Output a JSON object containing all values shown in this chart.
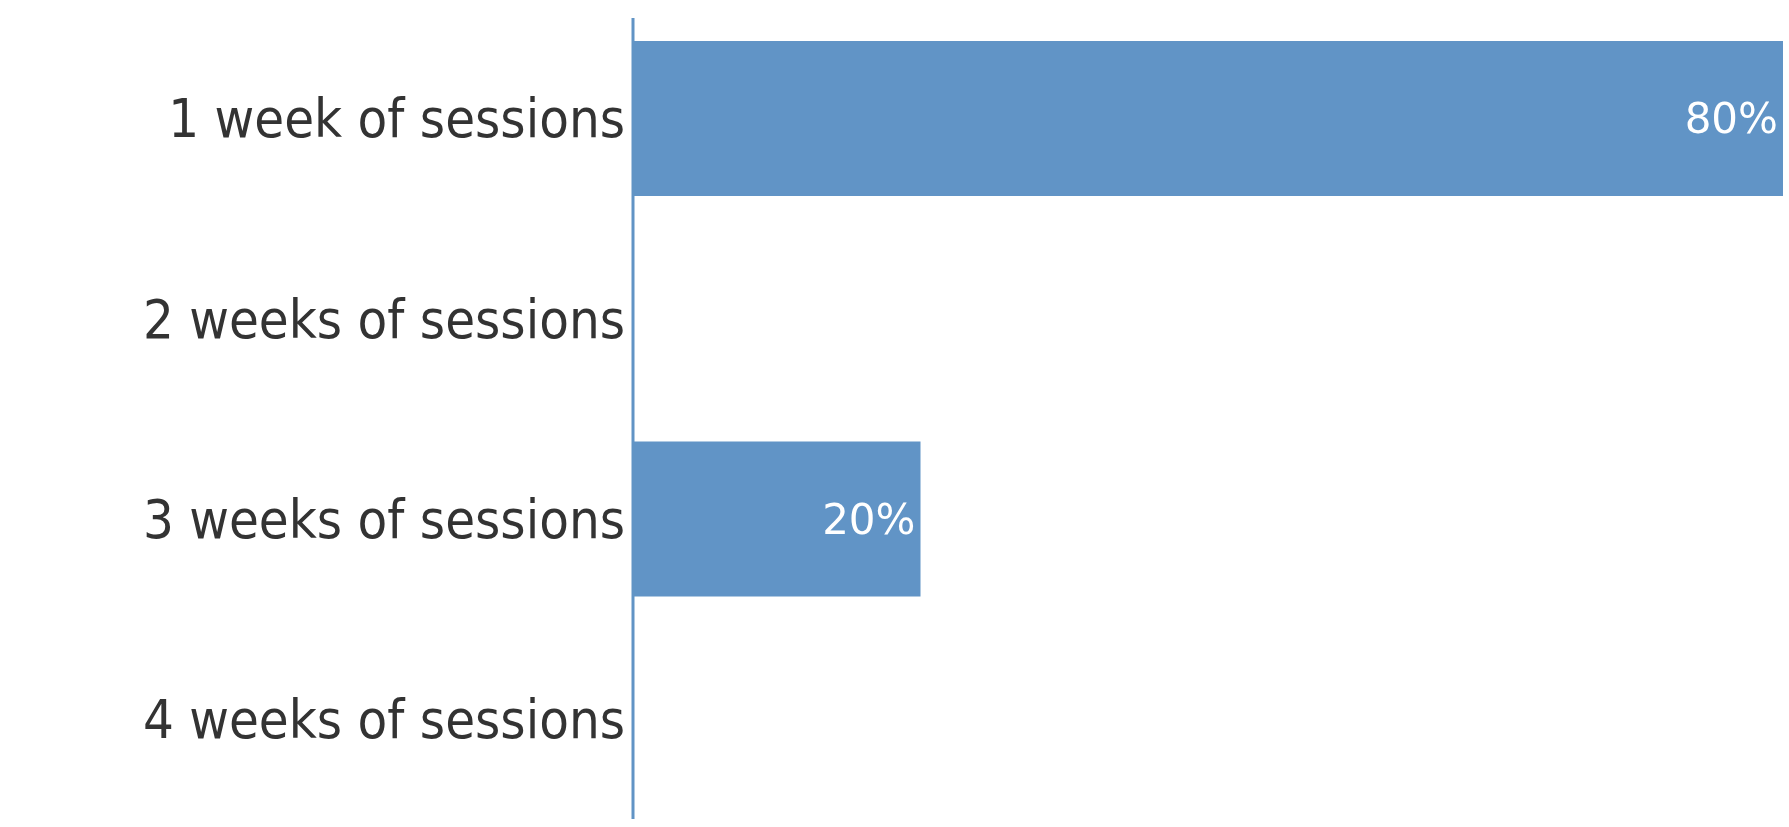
{
  "chart_data": {
    "type": "bar",
    "orientation": "horizontal",
    "categories": [
      "1 week of sessions",
      "2 weeks of sessions",
      "3 weeks of sessions",
      "4 weeks of sessions"
    ],
    "values": [
      80,
      0,
      20,
      0
    ],
    "color": "#6194c6",
    "value_labels": [
      "80%",
      null,
      "20%",
      null
    ]
  }
}
